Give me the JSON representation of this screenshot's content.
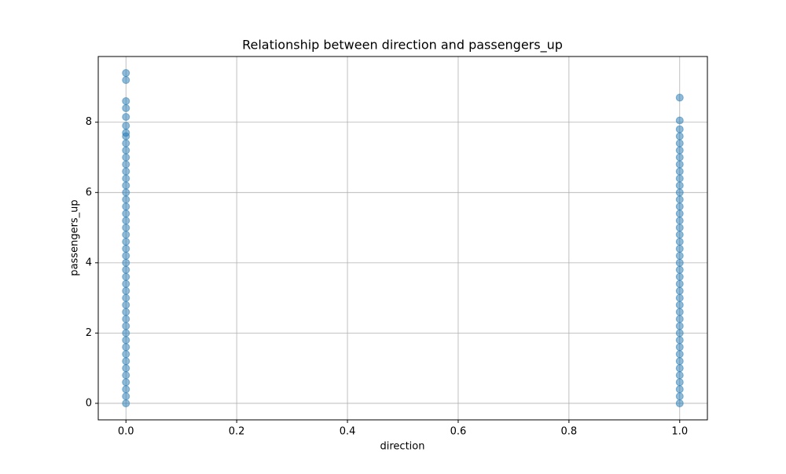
{
  "chart_data": {
    "type": "scatter",
    "title": "Relationship between direction and passengers_up",
    "xlabel": "direction",
    "ylabel": "passengers_up",
    "x": [
      0,
      0,
      0,
      0,
      0,
      0,
      0,
      0,
      0,
      0,
      0,
      0,
      0,
      0,
      0,
      0,
      0,
      0,
      0,
      0,
      0,
      0,
      0,
      0,
      0,
      0,
      0,
      0,
      0,
      0,
      0,
      0,
      0,
      0,
      0,
      0,
      0,
      0,
      0,
      0,
      0,
      0,
      0,
      0,
      0,
      0,
      1,
      1,
      1,
      1,
      1,
      1,
      1,
      1,
      1,
      1,
      1,
      1,
      1,
      1,
      1,
      1,
      1,
      1,
      1,
      1,
      1,
      1,
      1,
      1,
      1,
      1,
      1,
      1,
      1,
      1,
      1,
      1,
      1,
      1,
      1,
      1,
      1,
      1,
      1,
      1,
      1,
      1
    ],
    "y": [
      0,
      0.2,
      0.4,
      0.6,
      0.8,
      1,
      1.2,
      1.4,
      1.6,
      1.8,
      2,
      2.2,
      2.4,
      2.6,
      2.8,
      3,
      3.2,
      3.4,
      3.6,
      3.8,
      4,
      4.2,
      4.4,
      4.6,
      4.8,
      5,
      5.2,
      5.4,
      5.6,
      5.8,
      6,
      6.2,
      6.4,
      6.6,
      6.8,
      7,
      7.2,
      7.4,
      7.6,
      7.7,
      7.9,
      8.15,
      8.4,
      8.6,
      9.2,
      9.4,
      0,
      0.2,
      0.4,
      0.6,
      0.8,
      1,
      1.2,
      1.4,
      1.6,
      1.8,
      2,
      2.2,
      2.4,
      2.6,
      2.8,
      3,
      3.2,
      3.4,
      3.6,
      3.8,
      4,
      4.2,
      4.4,
      4.6,
      4.8,
      5,
      5.2,
      5.4,
      5.6,
      5.8,
      6,
      6.2,
      6.4,
      6.6,
      6.8,
      7,
      7.2,
      7.4,
      7.6,
      7.8,
      8.05,
      8.7
    ],
    "color": "#1f77b4",
    "alpha": 0.5,
    "xlim": [
      -0.05,
      1.05
    ],
    "ylim": [
      -0.47,
      9.87
    ],
    "xticks": [
      {
        "value": 0,
        "label": "0.0"
      },
      0.2,
      0.4,
      0.6,
      0.8,
      {
        "value": 1,
        "label": "1.0"
      }
    ],
    "yticks": [
      0,
      2,
      4,
      6,
      8
    ],
    "grid": true
  }
}
